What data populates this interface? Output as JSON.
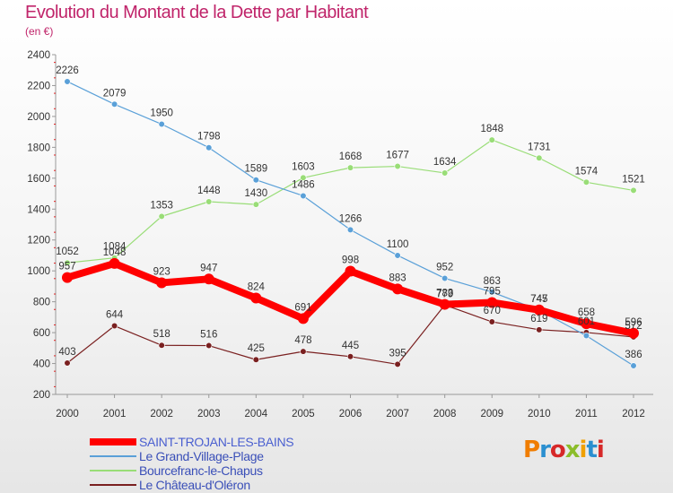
{
  "title": "Evolution du Montant de la Dette par Habitant",
  "subtitle": "(en €)",
  "logo": {
    "text": "Proxiti",
    "colors": [
      "#f07d00",
      "#2a8fd0",
      "#d62828",
      "#8bbd2a",
      "#f0a000",
      "#2a8fd0",
      "#d62828"
    ]
  },
  "chart_data": {
    "type": "line",
    "x": [
      "2000",
      "2001",
      "2002",
      "2003",
      "2004",
      "2005",
      "2006",
      "2007",
      "2008",
      "2009",
      "2010",
      "2011",
      "2012"
    ],
    "ylim": [
      200,
      2400
    ],
    "yticks": [
      200,
      400,
      600,
      800,
      1000,
      1200,
      1400,
      1600,
      1800,
      2000,
      2200,
      2400
    ],
    "grid": false,
    "legend_position": "bottom-left",
    "series": [
      {
        "name": "SAINT-TROJAN-LES-BAINS",
        "color": "#ff0000",
        "values": [
          957,
          1048,
          923,
          947,
          824,
          691,
          998,
          883,
          783,
          795,
          747,
          658,
          596
        ],
        "labels": [
          "957",
          "1048",
          "923",
          "947",
          "824",
          "691",
          "998",
          "883",
          "783",
          "795",
          "747",
          "658",
          "596"
        ],
        "width": 8
      },
      {
        "name": "Le Grand-Village-Plage",
        "color": "#5aa0d8",
        "values": [
          2226,
          2079,
          1950,
          1798,
          1589,
          1486,
          1266,
          1100,
          952,
          863,
          745,
          580,
          386
        ],
        "labels": [
          "2226",
          "2079",
          "1950",
          "1798",
          "1589",
          "1486",
          "1266",
          "1100",
          "952",
          "863",
          "745",
          "",
          "386"
        ],
        "width": 1.2
      },
      {
        "name": "Bourcefranc-le-Chapus",
        "color": "#99dd77",
        "values": [
          1052,
          1084,
          1353,
          1448,
          1430,
          1603,
          1668,
          1677,
          1634,
          1848,
          1731,
          1574,
          1521
        ],
        "labels": [
          "1052",
          "1084",
          "1353",
          "1448",
          "1430",
          "1603",
          "1668",
          "1677",
          "1634",
          "1848",
          "1731",
          "1574",
          "1521"
        ],
        "width": 1.2
      },
      {
        "name": "Le Château-d'Oléron",
        "color": "#7a2020",
        "values": [
          403,
          644,
          518,
          516,
          425,
          478,
          445,
          395,
          779,
          670,
          619,
          601,
          572
        ],
        "labels": [
          "403",
          "644",
          "518",
          "516",
          "425",
          "478",
          "445",
          "395",
          "779",
          "670",
          "619",
          "601",
          "572"
        ],
        "width": 1.2
      }
    ]
  }
}
